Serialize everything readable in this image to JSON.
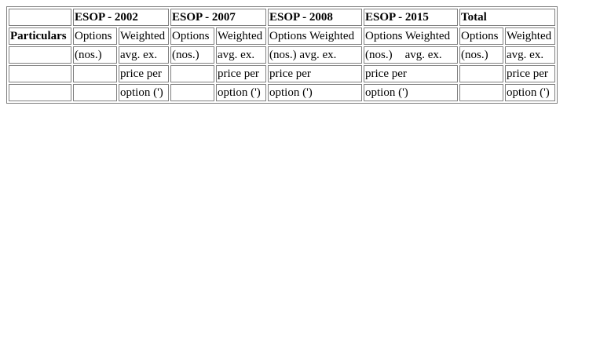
{
  "headers": {
    "particulars": "Particulars",
    "esop_2002": "ESOP - 2002",
    "esop_2007": "ESOP - 2007",
    "esop_2008": "ESOP - 2008",
    "esop_2015": "ESOP - 2015",
    "total": "Total"
  },
  "row1": {
    "options": "Options",
    "weighted": "Weighted",
    "options_weighted": "Options Weighted"
  },
  "row2": {
    "nos": "(nos.)",
    "avg_ex": "avg. ex.",
    "nos_avg_ex": "(nos.) avg. ex."
  },
  "row3": {
    "price_per": "price per"
  },
  "row4": {
    "option_rs": "option (')"
  }
}
